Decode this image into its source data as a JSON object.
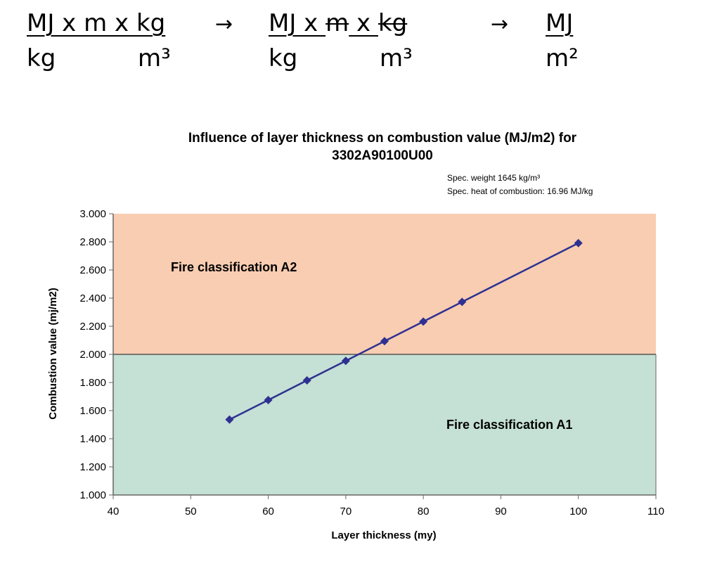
{
  "formula": {
    "group1": {
      "num": "MJ x m x kg",
      "den_left": "kg",
      "den_right": "m³"
    },
    "arrow1": "→",
    "group2": {
      "num_pre": "MJ x ",
      "num_strike1": "m",
      "num_mid": " x ",
      "num_strike2": "kg",
      "den_left": "kg",
      "den_right": "m³"
    },
    "arrow2": "→",
    "group3": {
      "num": "MJ",
      "den": "m²"
    }
  },
  "chart_data": {
    "type": "line",
    "title_line1": "Influence of layer thickness on combustion value (MJ/m2) for",
    "title_line2": "3302A90100U00",
    "note_line1": "Spec. weight 1645 kg/m³",
    "note_line2": "Spec. heat of combustion: 16.96 MJ/kg",
    "xlabel": "Layer thickness (my)",
    "ylabel": "Combustion value (mj/m2)",
    "xlim": [
      40,
      110
    ],
    "ylim": [
      1.0,
      3.0
    ],
    "xticks": [
      40,
      50,
      60,
      70,
      80,
      90,
      100,
      110
    ],
    "xtick_labels": [
      "40",
      "50",
      "60",
      "70",
      "80",
      "90",
      "100",
      "110"
    ],
    "yticks": [
      1.0,
      1.2,
      1.4,
      1.6,
      1.8,
      2.0,
      2.2,
      2.4,
      2.6,
      2.8,
      3.0
    ],
    "ytick_labels": [
      "1.000",
      "1.200",
      "1.400",
      "1.600",
      "1.800",
      "2.000",
      "2.200",
      "2.400",
      "2.600",
      "2.800",
      "3.000"
    ],
    "threshold": 2.0,
    "regions": [
      {
        "label": "Fire classification A2",
        "from": 2.0,
        "to": 3.0,
        "color": "#f9cdb1"
      },
      {
        "label": "Fire classification A1",
        "from": 1.0,
        "to": 2.0,
        "color": "#c5e0d4"
      }
    ],
    "series": [
      {
        "x": [
          55,
          60,
          65,
          70,
          75,
          80,
          85,
          100
        ],
        "values": [
          1.536,
          1.675,
          1.815,
          1.954,
          2.094,
          2.233,
          2.373,
          2.791
        ],
        "color": "#2e3192"
      }
    ],
    "grid": false
  }
}
